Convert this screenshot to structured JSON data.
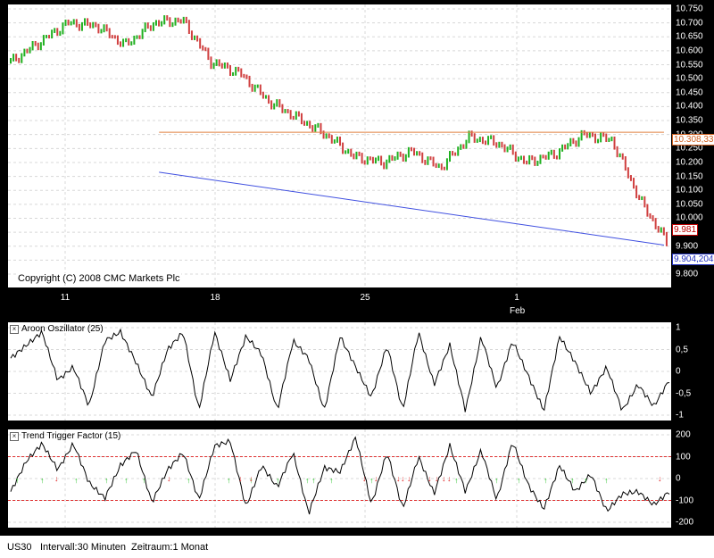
{
  "chart_data": [
    {
      "type": "candlestick",
      "title": "",
      "ylim": [
        9800,
        10750
      ],
      "y_ticks": [
        "10.750",
        "10.700",
        "10.650",
        "10.600",
        "10.550",
        "10.500",
        "10.450",
        "10.400",
        "10.350",
        "10.300",
        "10.250",
        "10.200",
        "10.150",
        "10.100",
        "10.050",
        "10.000",
        "9.950",
        "9.900",
        "9.850",
        "9.800"
      ],
      "x_ticks": [
        "11",
        "18",
        "25",
        "1"
      ],
      "x_sublabel": "Feb",
      "series": [
        {
          "x": [
            0,
            1,
            2,
            3,
            4,
            5,
            6,
            7,
            8,
            9,
            10,
            11,
            12,
            13,
            14,
            15,
            16,
            17,
            18,
            19,
            20,
            21,
            22,
            23
          ],
          "values": [
            10560,
            10630,
            10700,
            10690,
            10620,
            10700,
            10710,
            10560,
            10520,
            10420,
            10360,
            10300,
            10220,
            10200,
            10240,
            10180,
            10290,
            10270,
            10200,
            10230,
            10300,
            10280,
            10060,
            9900
          ]
        }
      ],
      "lines": [
        {
          "name": "resistance",
          "from": [
            5.3,
            10308
          ],
          "to": [
            23.9,
            10308
          ],
          "color": "#e08040"
        },
        {
          "name": "support",
          "from": [
            5.3,
            10165
          ],
          "to": [
            23.9,
            9904
          ],
          "color": "#4050e0"
        }
      ],
      "labels": {
        "resistance": "10.308,33",
        "last": "9.981",
        "support": "9.904,204"
      },
      "copyright": "Copyright (C) 2008 CMC Markets Plc",
      "grid": true
    },
    {
      "type": "line",
      "title": "Aroon Oszillator (25)",
      "ylim": [
        -1,
        1
      ],
      "y_ticks": [
        "1",
        "0,5",
        "0",
        "-0,5",
        "-1"
      ],
      "series": [
        {
          "values": [
            0.3,
            0.6,
            0.9,
            -0.2,
            0.1,
            -0.8,
            0.7,
            0.9,
            0.2,
            -0.6,
            0.5,
            0.9,
            -0.9,
            0.9,
            -0.2,
            0.8,
            0.4,
            -0.9,
            0.7,
            0.3,
            -0.9,
            0.8,
            0.1,
            -0.6,
            0.6,
            -0.9,
            0.9,
            -0.3,
            0.6,
            -0.9,
            0.8,
            -0.4,
            0.7,
            -0.1,
            -0.9,
            0.8,
            0.2,
            -0.5,
            0.1,
            -0.9,
            -0.3,
            -0.8,
            -0.2
          ]
        }
      ]
    },
    {
      "type": "line",
      "title": "Trend Trigger Factor (15)",
      "ylim": [
        -200,
        200
      ],
      "y_ticks": [
        "200",
        "100",
        "0",
        "-100",
        "-200"
      ],
      "reference_lines": [
        100,
        -100
      ],
      "series": [
        {
          "values": [
            -60,
            80,
            160,
            40,
            160,
            -20,
            -90,
            60,
            130,
            -110,
            40,
            120,
            -100,
            150,
            170,
            -130,
            60,
            -40,
            120,
            -160,
            50,
            30,
            190,
            -120,
            120,
            -140,
            100,
            -70,
            150,
            -60,
            130,
            -100,
            170,
            -30,
            -140,
            60,
            -60,
            20,
            -150,
            -70,
            -60,
            -120,
            -60
          ]
        }
      ]
    }
  ],
  "status": {
    "symbol": "US30",
    "interval": "Intervall:30 Minuten",
    "period": "Zeitraum:1 Monat"
  }
}
